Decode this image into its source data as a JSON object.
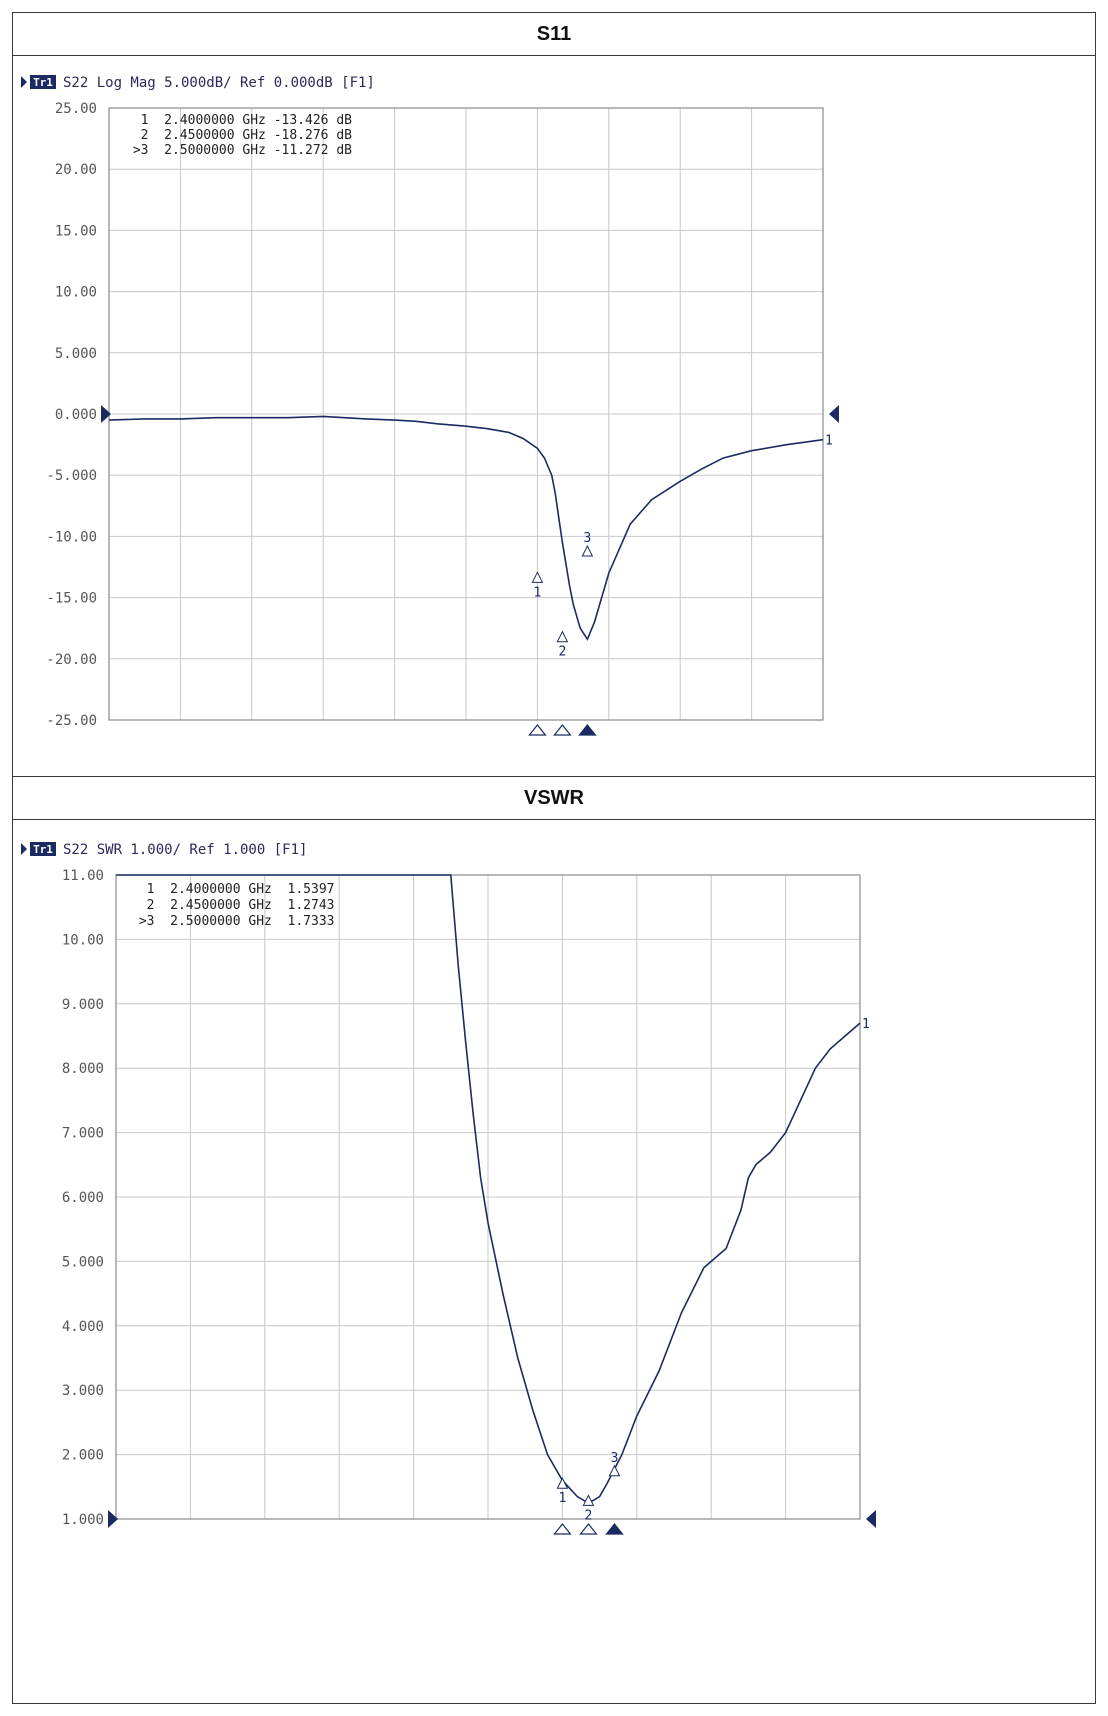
{
  "table": {
    "header1": "S11",
    "header2": "VSWR"
  },
  "colors": {
    "trace": "#1c2a63",
    "grid": "#c8c8c8",
    "frame": "#8a8a8a",
    "text": "#2a2a5a",
    "badge": "#1c2a63"
  },
  "chart_data": [
    {
      "type": "line",
      "badge": "Tr1",
      "header_text": "S22 Log Mag 5.000dB/ Ref 0.000dB [F1]",
      "ylim": [
        -25,
        25
      ],
      "yticks": [
        "25.00",
        "20.00",
        "15.00",
        "10.00",
        "5.000",
        "0.000",
        "-5.000",
        "-10.00",
        "-15.00",
        "-20.00",
        "-25.00"
      ],
      "xlabel": "",
      "ylabel": "",
      "grid": true,
      "x_divisions": 10,
      "ref_value": 0,
      "marker_table": [
        "  1  2.4000000 GHz -13.426 dB",
        "  2  2.4500000 GHz -18.276 dB",
        " >3  2.5000000 GHz -11.272 dB"
      ],
      "series": [
        {
          "x": [
            0,
            0.5,
            1.0,
            1.5,
            2.0,
            2.5,
            3.0,
            3.3,
            3.6,
            4.0,
            4.3,
            4.6,
            5.0,
            5.3,
            5.6,
            5.8,
            6.0,
            6.1,
            6.2,
            6.25,
            6.3,
            6.35,
            6.45,
            6.5,
            6.6,
            6.7,
            6.8,
            7.0,
            7.3,
            7.6,
            8.0,
            8.3,
            8.6,
            9.0,
            9.5,
            10.0
          ],
          "values": [
            -0.5,
            -0.4,
            -0.4,
            -0.3,
            -0.3,
            -0.3,
            -0.2,
            -0.3,
            -0.4,
            -0.5,
            -0.6,
            -0.8,
            -1.0,
            -1.2,
            -1.5,
            -2.0,
            -2.8,
            -3.6,
            -5.0,
            -6.5,
            -8.5,
            -10.5,
            -14.0,
            -15.5,
            -17.5,
            -18.4,
            -17.0,
            -13.0,
            -9.0,
            -7.0,
            -5.5,
            -4.5,
            -3.6,
            -3.0,
            -2.5,
            -2.1
          ]
        }
      ],
      "markers": [
        {
          "id": "1",
          "x": 6.0,
          "value": -13.426,
          "label_pos": "below"
        },
        {
          "id": "2",
          "x": 6.35,
          "value": -18.276,
          "label_pos": "below"
        },
        {
          "id": "3",
          "x": 6.7,
          "value": -11.272,
          "label_pos": "above"
        }
      ],
      "end_label": "1"
    },
    {
      "type": "line",
      "badge": "Tr1",
      "header_text": "S22 SWR 1.000/ Ref 1.000 [F1]",
      "ylim": [
        1,
        11
      ],
      "yticks": [
        "11.00",
        "10.00",
        "9.000",
        "8.000",
        "7.000",
        "6.000",
        "5.000",
        "4.000",
        "3.000",
        "2.000",
        "1.000"
      ],
      "xlabel": "",
      "ylabel": "",
      "grid": true,
      "x_divisions": 10,
      "ref_value": 1,
      "marker_table": [
        "  1  2.4000000 GHz  1.5397",
        "  2  2.4500000 GHz  1.2743",
        " >3  2.5000000 GHz  1.7333"
      ],
      "series": [
        {
          "x": [
            0,
            4.5,
            4.55,
            4.6,
            4.7,
            4.8,
            4.9,
            5.0,
            5.2,
            5.4,
            5.6,
            5.8,
            6.0,
            6.2,
            6.3,
            6.4,
            6.5,
            6.6,
            6.8,
            7.0,
            7.3,
            7.6,
            7.9,
            8.0,
            8.2,
            8.4,
            8.5,
            8.6,
            8.8,
            9.0,
            9.2,
            9.4,
            9.6,
            9.8,
            10.0
          ],
          "values": [
            11.0,
            11.0,
            10.3,
            9.6,
            8.4,
            7.3,
            6.3,
            5.6,
            4.5,
            3.5,
            2.7,
            2.0,
            1.6,
            1.35,
            1.28,
            1.28,
            1.35,
            1.55,
            2.0,
            2.6,
            3.3,
            4.2,
            4.9,
            5.0,
            5.2,
            5.8,
            6.3,
            6.5,
            6.7,
            7.0,
            7.5,
            8.0,
            8.3,
            8.5,
            8.7
          ]
        }
      ],
      "markers": [
        {
          "id": "1",
          "x": 6.0,
          "value": 1.5397,
          "label_pos": "below"
        },
        {
          "id": "2",
          "x": 6.35,
          "value": 1.2743,
          "label_pos": "below"
        },
        {
          "id": "3",
          "x": 6.7,
          "value": 1.7333,
          "label_pos": "above"
        }
      ],
      "end_label": "1"
    }
  ]
}
